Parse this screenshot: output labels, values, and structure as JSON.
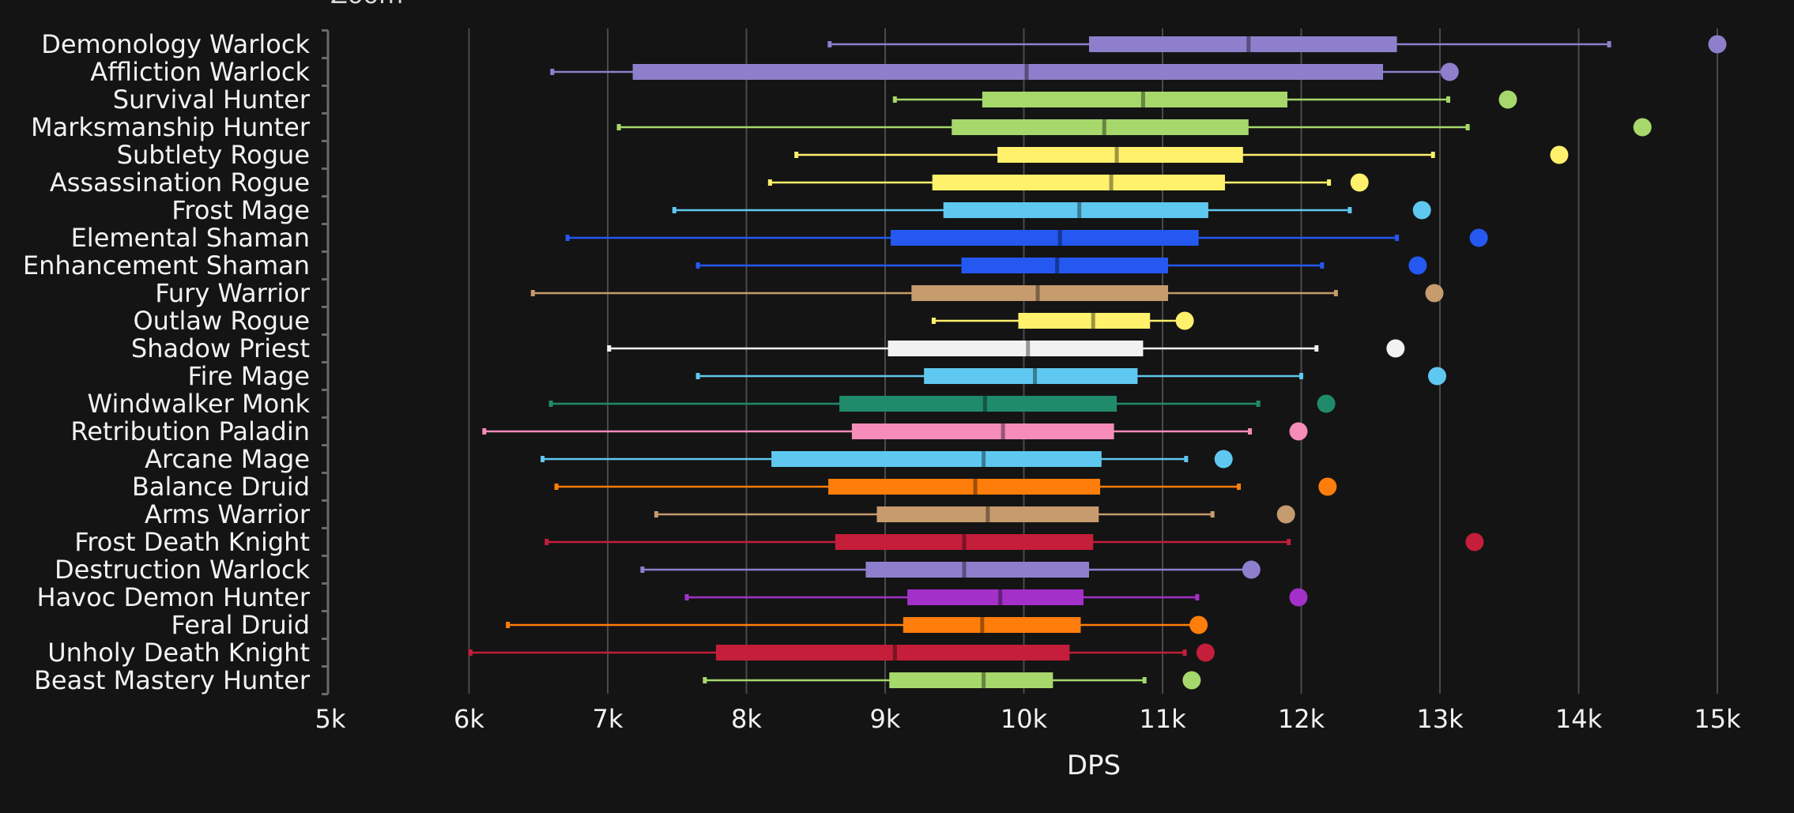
{
  "chart_data": {
    "type": "box",
    "title": "",
    "corner_label": "Zoom",
    "xlabel": "DPS",
    "ylabel": "",
    "xlim": [
      5000,
      15000
    ],
    "xticks": [
      {
        "value": 5000,
        "label": "5k"
      },
      {
        "value": 6000,
        "label": "6k"
      },
      {
        "value": 7000,
        "label": "7k"
      },
      {
        "value": 8000,
        "label": "8k"
      },
      {
        "value": 9000,
        "label": "9k"
      },
      {
        "value": 10000,
        "label": "10k"
      },
      {
        "value": 11000,
        "label": "11k"
      },
      {
        "value": 12000,
        "label": "12k"
      },
      {
        "value": 13000,
        "label": "13k"
      },
      {
        "value": 14000,
        "label": "14k"
      },
      {
        "value": 15000,
        "label": "15k"
      }
    ],
    "grid": true,
    "series": [
      {
        "name": "Demonology Warlock",
        "color": "#8e7fcc",
        "min": 8600,
        "q1": 10470,
        "median": 11620,
        "q3": 12690,
        "max": 14220,
        "outlier": 15000
      },
      {
        "name": "Affliction Warlock",
        "color": "#8e7fcc",
        "min": 6600,
        "q1": 7180,
        "median": 10020,
        "q3": 12590,
        "max": 13050,
        "outlier": 13070
      },
      {
        "name": "Survival Hunter",
        "color": "#a6d86b",
        "min": 9070,
        "q1": 9700,
        "median": 10860,
        "q3": 11900,
        "max": 13060,
        "outlier": 13490
      },
      {
        "name": "Marksmanship Hunter",
        "color": "#a6d86b",
        "min": 7080,
        "q1": 9480,
        "median": 10580,
        "q3": 11620,
        "max": 13200,
        "outlier": 14460
      },
      {
        "name": "Subtlety Rogue",
        "color": "#fff16b",
        "min": 8360,
        "q1": 9810,
        "median": 10670,
        "q3": 11580,
        "max": 12950,
        "outlier": 13860
      },
      {
        "name": "Assassination Rogue",
        "color": "#fff16b",
        "min": 8170,
        "q1": 9340,
        "median": 10630,
        "q3": 11450,
        "max": 12200,
        "outlier": 12420
      },
      {
        "name": "Frost Mage",
        "color": "#5fc8f0",
        "min": 7480,
        "q1": 9420,
        "median": 10400,
        "q3": 11330,
        "max": 12350,
        "outlier": 12870
      },
      {
        "name": "Elemental Shaman",
        "color": "#2458f0",
        "min": 6710,
        "q1": 9040,
        "median": 10260,
        "q3": 11260,
        "max": 12690,
        "outlier": 13280
      },
      {
        "name": "Enhancement Shaman",
        "color": "#2458f0",
        "min": 7650,
        "q1": 9550,
        "median": 10240,
        "q3": 11040,
        "max": 12150,
        "outlier": 12840
      },
      {
        "name": "Fury Warrior",
        "color": "#c69b6d",
        "min": 6460,
        "q1": 9190,
        "median": 10100,
        "q3": 11040,
        "max": 12250,
        "outlier": 12960
      },
      {
        "name": "Outlaw Rogue",
        "color": "#fff16b",
        "min": 9350,
        "q1": 9960,
        "median": 10500,
        "q3": 10910,
        "max": 11160,
        "outlier": 11160
      },
      {
        "name": "Shadow Priest",
        "color": "#f2f2f2",
        "min": 7010,
        "q1": 9020,
        "median": 10030,
        "q3": 10860,
        "max": 12110,
        "outlier": 12680
      },
      {
        "name": "Fire Mage",
        "color": "#5fc8f0",
        "min": 7650,
        "q1": 9280,
        "median": 10080,
        "q3": 10820,
        "max": 12000,
        "outlier": 12980
      },
      {
        "name": "Windwalker Monk",
        "color": "#208b6b",
        "min": 6590,
        "q1": 8670,
        "median": 9720,
        "q3": 10670,
        "max": 11690,
        "outlier": 12180
      },
      {
        "name": "Retribution Paladin",
        "color": "#f58cba",
        "min": 6110,
        "q1": 8760,
        "median": 9850,
        "q3": 10650,
        "max": 11630,
        "outlier": 11980
      },
      {
        "name": "Arcane Mage",
        "color": "#5fc8f0",
        "min": 6530,
        "q1": 8180,
        "median": 9710,
        "q3": 10560,
        "max": 11170,
        "outlier": 11440
      },
      {
        "name": "Balance Druid",
        "color": "#ff7d0a",
        "min": 6630,
        "q1": 8590,
        "median": 9650,
        "q3": 10550,
        "max": 11550,
        "outlier": 12190
      },
      {
        "name": "Arms Warrior",
        "color": "#c69b6d",
        "min": 7350,
        "q1": 8940,
        "median": 9740,
        "q3": 10540,
        "max": 11360,
        "outlier": 11890
      },
      {
        "name": "Frost Death Knight",
        "color": "#c41e3a",
        "min": 6560,
        "q1": 8640,
        "median": 9570,
        "q3": 10500,
        "max": 11910,
        "outlier": 13250
      },
      {
        "name": "Destruction Warlock",
        "color": "#8e7fcc",
        "min": 7250,
        "q1": 8860,
        "median": 9570,
        "q3": 10470,
        "max": 11640,
        "outlier": 11640
      },
      {
        "name": "Havoc Demon Hunter",
        "color": "#a330c9",
        "min": 7570,
        "q1": 9160,
        "median": 9830,
        "q3": 10430,
        "max": 11250,
        "outlier": 11980
      },
      {
        "name": "Feral Druid",
        "color": "#ff7d0a",
        "min": 6280,
        "q1": 9130,
        "median": 9700,
        "q3": 10410,
        "max": 11260,
        "outlier": 11260
      },
      {
        "name": "Unholy Death Knight",
        "color": "#c41e3a",
        "min": 6010,
        "q1": 7780,
        "median": 9070,
        "q3": 10330,
        "max": 11160,
        "outlier": 11310
      },
      {
        "name": "Beast Mastery Hunter",
        "color": "#a6d86b",
        "min": 7700,
        "q1": 9030,
        "median": 9710,
        "q3": 10210,
        "max": 10870,
        "outlier": 11210
      }
    ]
  }
}
